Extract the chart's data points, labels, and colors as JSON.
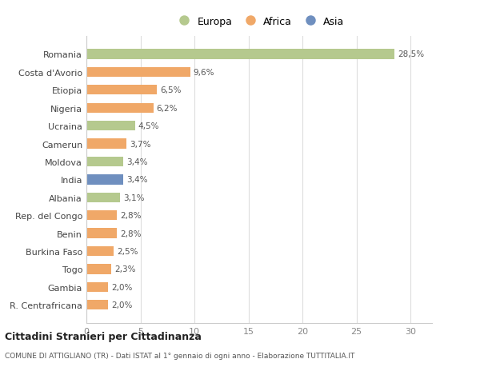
{
  "categories": [
    "Romania",
    "Costa d'Avorio",
    "Etiopia",
    "Nigeria",
    "Ucraina",
    "Camerun",
    "Moldova",
    "India",
    "Albania",
    "Rep. del Congo",
    "Benin",
    "Burkina Faso",
    "Togo",
    "Gambia",
    "R. Centrafricana"
  ],
  "values": [
    28.5,
    9.6,
    6.5,
    6.2,
    4.5,
    3.7,
    3.4,
    3.4,
    3.1,
    2.8,
    2.8,
    2.5,
    2.3,
    2.0,
    2.0
  ],
  "labels": [
    "28,5%",
    "9,6%",
    "6,5%",
    "6,2%",
    "4,5%",
    "3,7%",
    "3,4%",
    "3,4%",
    "3,1%",
    "2,8%",
    "2,8%",
    "2,5%",
    "2,3%",
    "2,0%",
    "2,0%"
  ],
  "colors": [
    "#b5c98e",
    "#f0a868",
    "#f0a868",
    "#f0a868",
    "#b5c98e",
    "#f0a868",
    "#b5c98e",
    "#6f8fbf",
    "#b5c98e",
    "#f0a868",
    "#f0a868",
    "#f0a868",
    "#f0a868",
    "#f0a868",
    "#f0a868"
  ],
  "legend_labels": [
    "Europa",
    "Africa",
    "Asia"
  ],
  "legend_colors": [
    "#b5c98e",
    "#f0a868",
    "#6f8fbf"
  ],
  "xlim": [
    0,
    32
  ],
  "xticks": [
    0,
    5,
    10,
    15,
    20,
    25,
    30
  ],
  "title": "Cittadini Stranieri per Cittadinanza",
  "subtitle": "COMUNE DI ATTIGLIANO (TR) - Dati ISTAT al 1° gennaio di ogni anno - Elaborazione TUTTITALIA.IT",
  "bg_color": "#ffffff",
  "bar_height": 0.55
}
